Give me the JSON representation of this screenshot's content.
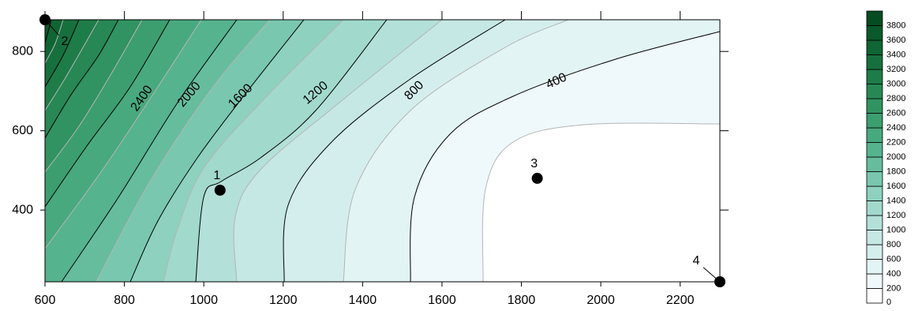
{
  "chart_data": {
    "type": "contour",
    "xlim": [
      600,
      2300
    ],
    "xticks": [
      600,
      800,
      1000,
      1200,
      1400,
      1600,
      1800,
      2000,
      2200
    ],
    "ylim": [
      219,
      880
    ],
    "yticks": [
      400,
      600,
      800
    ],
    "levels": [
      0,
      200,
      400,
      600,
      800,
      1000,
      1200,
      1400,
      1600,
      1800,
      2000,
      2200,
      2400,
      2600,
      2800,
      3000,
      3200,
      3400,
      3600,
      3800
    ],
    "colors": [
      "#ffffff",
      "#eff8fb",
      "#e2f4f4",
      "#d4eeed",
      "#c5e8e4",
      "#b3e0d9",
      "#a1d9cc",
      "#8dd1be",
      "#79c7ae",
      "#66bd9e",
      "#55b38e",
      "#48a97e",
      "#3c9e6f",
      "#319361",
      "#278855",
      "#1e7c49",
      "#16703e",
      "#0f6534",
      "#0a592b",
      "#064c22"
    ],
    "labeled_levels": [
      400,
      800,
      1200,
      1600,
      2000,
      2400
    ],
    "points": [
      {
        "label": "1",
        "x": 1041,
        "y": 450
      },
      {
        "label": "2",
        "x": 600,
        "y": 880
      },
      {
        "label": "3",
        "x": 1840,
        "y": 480
      },
      {
        "label": "4",
        "x": 2300,
        "y": 219
      }
    ]
  }
}
